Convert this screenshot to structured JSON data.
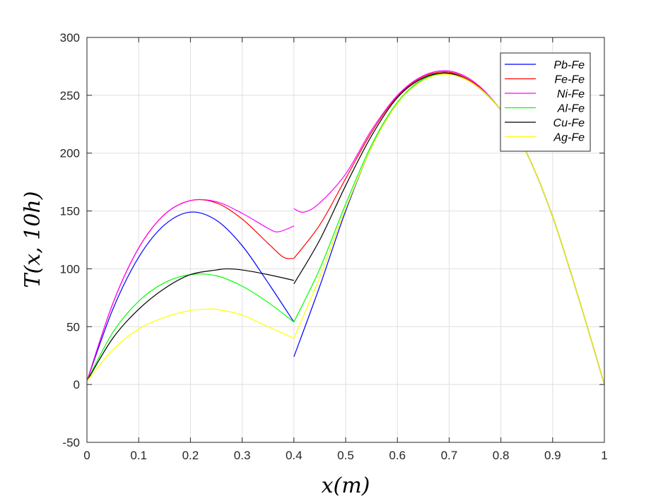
{
  "chart_data": {
    "type": "line",
    "title": "",
    "xlabel": "x(m)",
    "ylabel": "T(x, 10h)",
    "xlim": [
      0,
      1
    ],
    "ylim": [
      -50,
      300
    ],
    "xticks": [
      0,
      0.1,
      0.2,
      0.3,
      0.4,
      0.5,
      0.6,
      0.7,
      0.8,
      0.9,
      1
    ],
    "xtick_labels": [
      "0",
      "0.1",
      "0.2",
      "0.3",
      "0.4",
      "0.5",
      "0.6",
      "0.7",
      "0.8",
      "0.9",
      "1"
    ],
    "yticks": [
      -50,
      0,
      50,
      100,
      150,
      200,
      250,
      300
    ],
    "ytick_labels": [
      "-50",
      "0",
      "50",
      "100",
      "150",
      "200",
      "250",
      "300"
    ],
    "grid": true,
    "legend_position": "top-right",
    "series": [
      {
        "name": "Pb-Fe",
        "color": "#0000ff",
        "segments": [
          [
            [
              0,
              3
            ],
            [
              0.05,
              65
            ],
            [
              0.1,
              110
            ],
            [
              0.15,
              138
            ],
            [
              0.2,
              149
            ],
            [
              0.25,
              142
            ],
            [
              0.3,
              120
            ],
            [
              0.35,
              88
            ],
            [
              0.4,
              54
            ]
          ],
          [
            [
              0.4,
              24
            ],
            [
              0.45,
              85
            ],
            [
              0.5,
              150
            ],
            [
              0.55,
              205
            ],
            [
              0.6,
              243
            ],
            [
              0.65,
              264
            ],
            [
              0.7,
              269
            ],
            [
              0.75,
              259
            ],
            [
              0.8,
              237
            ],
            [
              0.85,
              200
            ],
            [
              0.9,
              145
            ],
            [
              0.95,
              75
            ],
            [
              1,
              0
            ]
          ]
        ]
      },
      {
        "name": "Fe-Fe",
        "color": "#ff0000",
        "segments": [
          [
            [
              0,
              3
            ],
            [
              0.05,
              70
            ],
            [
              0.1,
              118
            ],
            [
              0.15,
              147
            ],
            [
              0.2,
              159
            ],
            [
              0.25,
              157
            ],
            [
              0.3,
              143
            ],
            [
              0.35,
              122
            ],
            [
              0.38,
              110
            ],
            [
              0.4,
              109
            ]
          ],
          [
            [
              0.4,
              109
            ],
            [
              0.45,
              138
            ],
            [
              0.5,
              178
            ],
            [
              0.55,
              218
            ],
            [
              0.6,
              249
            ],
            [
              0.65,
              266
            ],
            [
              0.7,
              270
            ],
            [
              0.75,
              260
            ],
            [
              0.8,
              237
            ],
            [
              0.85,
              200
            ],
            [
              0.9,
              145
            ],
            [
              0.95,
              75
            ],
            [
              1,
              0
            ]
          ]
        ]
      },
      {
        "name": "Ni-Fe",
        "color": "#ff00ff",
        "segments": [
          [
            [
              0,
              3
            ],
            [
              0.05,
              70
            ],
            [
              0.1,
              118
            ],
            [
              0.15,
              147
            ],
            [
              0.2,
              159
            ],
            [
              0.25,
              158
            ],
            [
              0.3,
              148
            ],
            [
              0.35,
              135
            ],
            [
              0.37,
              132
            ],
            [
              0.4,
              137
            ]
          ],
          [
            [
              0.4,
              152
            ],
            [
              0.42,
              149
            ],
            [
              0.45,
              157
            ],
            [
              0.5,
              182
            ],
            [
              0.55,
              220
            ],
            [
              0.6,
              250
            ],
            [
              0.65,
              267
            ],
            [
              0.7,
              271
            ],
            [
              0.75,
              261
            ],
            [
              0.8,
              237
            ],
            [
              0.85,
              200
            ],
            [
              0.9,
              145
            ],
            [
              0.95,
              75
            ],
            [
              1,
              0
            ]
          ]
        ]
      },
      {
        "name": "Al-Fe",
        "color": "#00ff00",
        "segments": [
          [
            [
              0,
              3
            ],
            [
              0.05,
              45
            ],
            [
              0.1,
              72
            ],
            [
              0.15,
              88
            ],
            [
              0.2,
              95
            ],
            [
              0.25,
              94
            ],
            [
              0.3,
              85
            ],
            [
              0.35,
              71
            ],
            [
              0.4,
              54
            ]
          ],
          [
            [
              0.4,
              54
            ],
            [
              0.45,
              100
            ],
            [
              0.5,
              156
            ],
            [
              0.55,
              207
            ],
            [
              0.6,
              244
            ],
            [
              0.65,
              264
            ],
            [
              0.7,
              268
            ],
            [
              0.75,
              259
            ],
            [
              0.8,
              237
            ],
            [
              0.85,
              200
            ],
            [
              0.9,
              145
            ],
            [
              0.95,
              75
            ],
            [
              1,
              0
            ]
          ]
        ]
      },
      {
        "name": "Cu-Fe",
        "color": "#000000",
        "segments": [
          [
            [
              0,
              3
            ],
            [
              0.05,
              40
            ],
            [
              0.1,
              65
            ],
            [
              0.15,
              83
            ],
            [
              0.2,
              95
            ],
            [
              0.25,
              99
            ],
            [
              0.27,
              100
            ],
            [
              0.3,
              99
            ],
            [
              0.35,
              95
            ],
            [
              0.4,
              90
            ]
          ],
          [
            [
              0.4,
              87
            ],
            [
              0.45,
              125
            ],
            [
              0.5,
              172
            ],
            [
              0.55,
              215
            ],
            [
              0.6,
              248
            ],
            [
              0.65,
              265
            ],
            [
              0.7,
              269
            ],
            [
              0.75,
              259
            ],
            [
              0.8,
              237
            ],
            [
              0.85,
              200
            ],
            [
              0.9,
              145
            ],
            [
              0.95,
              75
            ],
            [
              1,
              0
            ]
          ]
        ]
      },
      {
        "name": "Ag-Fe",
        "color": "#ffff00",
        "segments": [
          [
            [
              0,
              3
            ],
            [
              0.05,
              30
            ],
            [
              0.1,
              48
            ],
            [
              0.15,
              58
            ],
            [
              0.2,
              64
            ],
            [
              0.23,
              65
            ],
            [
              0.25,
              65
            ],
            [
              0.3,
              60
            ],
            [
              0.35,
              50
            ],
            [
              0.4,
              40
            ]
          ],
          [
            [
              0.4,
              40
            ],
            [
              0.45,
              93
            ],
            [
              0.5,
              152
            ],
            [
              0.55,
              205
            ],
            [
              0.6,
              243
            ],
            [
              0.65,
              263
            ],
            [
              0.7,
              268
            ],
            [
              0.75,
              259
            ],
            [
              0.8,
              237
            ],
            [
              0.85,
              200
            ],
            [
              0.9,
              145
            ],
            [
              0.95,
              75
            ],
            [
              1,
              0
            ]
          ]
        ]
      }
    ]
  }
}
